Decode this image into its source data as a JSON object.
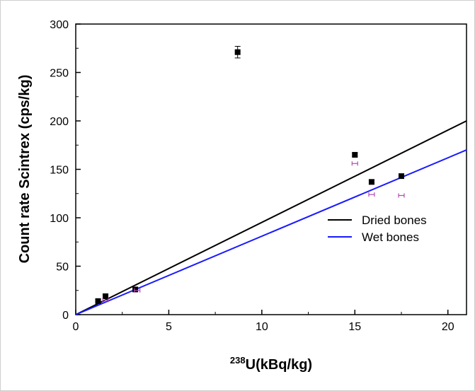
{
  "chart_data": {
    "type": "scatter",
    "xlabel_sup": "238",
    "xlabel": "U(kBq/kg)",
    "ylabel": "Count rate Scintrex (cps/kg)",
    "xlim": [
      0,
      21
    ],
    "ylim": [
      0,
      300
    ],
    "x_ticks": [
      0,
      5,
      10,
      15,
      20
    ],
    "y_ticks": [
      0,
      50,
      100,
      150,
      200,
      250,
      300
    ],
    "grid": false,
    "legend_position": "right",
    "series": [
      {
        "kind": "points",
        "color": "#000000",
        "marker": "filled-square",
        "points": [
          {
            "x": 1.2,
            "y": 14,
            "err": 2
          },
          {
            "x": 1.6,
            "y": 19,
            "err": 2
          },
          {
            "x": 3.2,
            "y": 26,
            "err": 2
          },
          {
            "x": 8.7,
            "y": 271,
            "err": 6
          },
          {
            "x": 15.0,
            "y": 165,
            "err": 2
          },
          {
            "x": 15.9,
            "y": 137,
            "err": 2
          },
          {
            "x": 17.5,
            "y": 143,
            "err": 2
          }
        ]
      },
      {
        "kind": "points",
        "color": "#b04bb0",
        "marker": "error-bar",
        "points": [
          {
            "x": 1.6,
            "y": 15,
            "xerr": 0.15
          },
          {
            "x": 3.3,
            "y": 25,
            "xerr": 0.15
          },
          {
            "x": 15.0,
            "y": 156,
            "xerr": 0.15
          },
          {
            "x": 15.9,
            "y": 124,
            "xerr": 0.15
          },
          {
            "x": 17.5,
            "y": 123,
            "xerr": 0.15
          }
        ]
      },
      {
        "kind": "line",
        "name": "Dried bones",
        "color": "#000000",
        "x": [
          0,
          21
        ],
        "y": [
          0,
          200
        ]
      },
      {
        "kind": "line",
        "name": "Wet bones",
        "color": "#1a1aff",
        "x": [
          0,
          21
        ],
        "y": [
          0,
          170
        ]
      }
    ]
  }
}
